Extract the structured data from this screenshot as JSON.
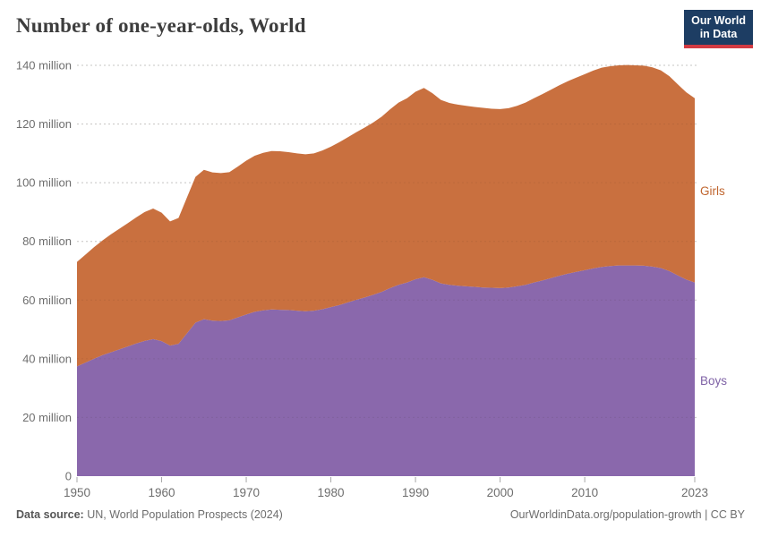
{
  "header": {
    "title": "Number of one-year-olds, World",
    "logo": {
      "line1": "Our World",
      "line2": "in Data"
    }
  },
  "footer": {
    "datasource_label": "Data source:",
    "datasource_text": " UN, World Population Prospects (2024)",
    "link_text": "OurWorldinData.org/population-growth",
    "separator": " | ",
    "license": "CC BY"
  },
  "colors": {
    "girls_fill": "#c9703f",
    "boys_fill": "#8a68ac",
    "girls_label": "#c0662f",
    "boys_label": "#7f62a6",
    "logo_bg": "#1d3d63",
    "logo_accent": "#d23a42",
    "gridline": "#d6d6d6",
    "axis_text": "#6e6e6e",
    "tick_mark": "#a8a8a8"
  },
  "chart_data": {
    "type": "area",
    "stacked": true,
    "title": "Number of one-year-olds, World",
    "unit": "million",
    "grid": true,
    "legend_position": "right-edge-labels",
    "ylim": [
      0,
      140
    ],
    "yticks": [
      0,
      20,
      40,
      60,
      80,
      100,
      120,
      140
    ],
    "ytick_labels": [
      "0",
      "20 million",
      "40 million",
      "60 million",
      "80 million",
      "100 million",
      "120 million",
      "140 million"
    ],
    "xticks": [
      1950,
      1960,
      1970,
      1980,
      1990,
      2000,
      2010,
      2023
    ],
    "x": [
      1950,
      1951,
      1952,
      1953,
      1954,
      1955,
      1956,
      1957,
      1958,
      1959,
      1960,
      1961,
      1962,
      1963,
      1964,
      1965,
      1966,
      1967,
      1968,
      1969,
      1970,
      1971,
      1972,
      1973,
      1974,
      1975,
      1976,
      1977,
      1978,
      1979,
      1980,
      1981,
      1982,
      1983,
      1984,
      1985,
      1986,
      1987,
      1988,
      1989,
      1990,
      1991,
      1992,
      1993,
      1994,
      1995,
      1996,
      1997,
      1998,
      1999,
      2000,
      2001,
      2002,
      2003,
      2004,
      2005,
      2006,
      2007,
      2008,
      2009,
      2010,
      2011,
      2012,
      2013,
      2014,
      2015,
      2016,
      2017,
      2018,
      2019,
      2020,
      2021,
      2022,
      2023
    ],
    "series": [
      {
        "name": "Boys",
        "color": "#8a68ac",
        "values": [
          37.4,
          38.7,
          40.0,
          41.2,
          42.2,
          43.2,
          44.2,
          45.2,
          46.1,
          46.7,
          46.0,
          44.5,
          45.1,
          48.7,
          52.3,
          53.5,
          53.0,
          52.9,
          53.1,
          54.1,
          55.1,
          56.0,
          56.5,
          56.8,
          56.7,
          56.6,
          56.4,
          56.2,
          56.4,
          56.9,
          57.6,
          58.3,
          59.2,
          60.1,
          60.9,
          61.8,
          62.8,
          64.1,
          65.2,
          66.0,
          67.1,
          67.8,
          66.9,
          65.7,
          65.2,
          64.9,
          64.7,
          64.5,
          64.3,
          64.2,
          64.1,
          64.3,
          64.7,
          65.2,
          66.0,
          66.7,
          67.5,
          68.3,
          69.0,
          69.6,
          70.2,
          70.8,
          71.3,
          71.6,
          71.8,
          71.8,
          71.8,
          71.7,
          71.4,
          70.9,
          69.9,
          68.4,
          67.0,
          66.0
        ]
      },
      {
        "name": "Girls",
        "color": "#c9703f",
        "values": [
          35.6,
          36.8,
          38.0,
          39.1,
          40.2,
          41.1,
          42.0,
          43.0,
          43.9,
          44.5,
          43.8,
          42.3,
          42.9,
          46.3,
          49.7,
          50.9,
          50.5,
          50.4,
          50.5,
          51.4,
          52.4,
          53.2,
          53.7,
          54.0,
          54.0,
          53.8,
          53.6,
          53.5,
          53.6,
          54.1,
          54.7,
          55.5,
          56.3,
          57.1,
          57.9,
          58.7,
          59.7,
          60.9,
          62.1,
          62.8,
          63.9,
          64.5,
          63.6,
          62.5,
          62.0,
          61.7,
          61.5,
          61.3,
          61.2,
          61.0,
          61.0,
          61.1,
          61.5,
          62.1,
          62.8,
          63.5,
          64.2,
          64.9,
          65.6,
          66.2,
          66.8,
          67.4,
          67.9,
          68.1,
          68.2,
          68.3,
          68.2,
          68.2,
          67.9,
          67.4,
          66.4,
          65.1,
          63.8,
          62.8
        ]
      }
    ],
    "series_labels": [
      {
        "text": "Girls",
        "color": "#c0662f"
      },
      {
        "text": "Boys",
        "color": "#7f62a6"
      }
    ]
  }
}
